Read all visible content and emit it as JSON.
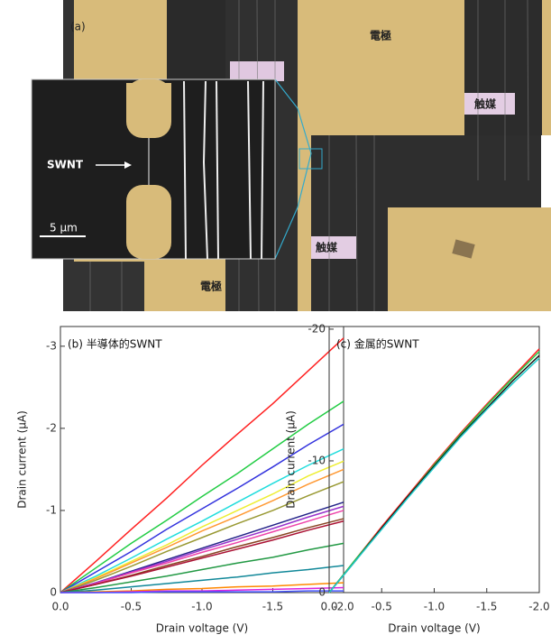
{
  "image": {
    "panel_label": "(a)",
    "electrode_top": "電極",
    "electrode_bottom": "電極",
    "catalyst_right": "触媒",
    "catalyst_bottom": "触媒",
    "inset": {
      "label": "SWNT",
      "scale_bar": "5 μm"
    }
  },
  "chart_data": [
    {
      "type": "line",
      "title": "(b) 半導体的SWNT",
      "x_label": "Drain voltage (V)",
      "y_label": "Drain current (μA)",
      "x": [
        0,
        -0.25,
        -0.5,
        -0.75,
        -1,
        -1.25,
        -1.5,
        -1.75,
        -2
      ],
      "xlim": [
        0,
        -2
      ],
      "xticks": [
        {
          "value": 0,
          "label": "0.0"
        },
        -0.5,
        {
          "value": -1,
          "label": "-1.0"
        },
        -1.5,
        {
          "value": -2,
          "label": "-2.0"
        }
      ],
      "ylim": [
        0,
        -3.24
      ],
      "yticks": [
        0,
        -1,
        -2,
        -3
      ],
      "series": [
        {
          "color": "#ff2020",
          "values": [
            0,
            -0.38,
            -0.77,
            -1.15,
            -1.55,
            -1.93,
            -2.3,
            -2.7,
            -3.1
          ]
        },
        {
          "color": "#22cc44",
          "values": [
            0,
            -0.3,
            -0.6,
            -0.88,
            -1.17,
            -1.45,
            -1.75,
            -2.05,
            -2.33
          ]
        },
        {
          "color": "#3333dd",
          "values": [
            0,
            -0.25,
            -0.5,
            -0.77,
            -1.02,
            -1.27,
            -1.53,
            -1.8,
            -2.05
          ]
        },
        {
          "color": "#22dddd",
          "values": [
            0,
            -0.2,
            -0.42,
            -0.65,
            -0.87,
            -1.1,
            -1.33,
            -1.55,
            -1.75
          ]
        },
        {
          "color": "#eeee33",
          "values": [
            0,
            -0.18,
            -0.38,
            -0.58,
            -0.8,
            -1.0,
            -1.2,
            -1.42,
            -1.6
          ]
        },
        {
          "color": "#ff9933",
          "values": [
            0,
            -0.17,
            -0.36,
            -0.55,
            -0.75,
            -0.93,
            -1.12,
            -1.32,
            -1.5
          ]
        },
        {
          "color": "#999933",
          "values": [
            0,
            -0.15,
            -0.32,
            -0.5,
            -0.67,
            -0.84,
            -1.0,
            -1.18,
            -1.35
          ]
        },
        {
          "color": "#222288",
          "values": [
            0,
            -0.12,
            -0.26,
            -0.4,
            -0.54,
            -0.68,
            -0.82,
            -0.96,
            -1.1
          ]
        },
        {
          "color": "#9933cc",
          "values": [
            0,
            -0.12,
            -0.25,
            -0.38,
            -0.52,
            -0.65,
            -0.78,
            -0.92,
            -1.05
          ]
        },
        {
          "color": "#ee44aa",
          "values": [
            0,
            -0.11,
            -0.24,
            -0.36,
            -0.49,
            -0.61,
            -0.74,
            -0.87,
            -1.0
          ]
        },
        {
          "color": "#884422",
          "values": [
            0,
            -0.1,
            -0.21,
            -0.33,
            -0.44,
            -0.56,
            -0.67,
            -0.79,
            -0.9
          ]
        },
        {
          "color": "#aa1133",
          "values": [
            0,
            -0.1,
            -0.2,
            -0.31,
            -0.42,
            -0.53,
            -0.64,
            -0.76,
            -0.87
          ]
        },
        {
          "color": "#229944",
          "values": [
            0,
            -0.06,
            -0.13,
            -0.2,
            -0.28,
            -0.36,
            -0.43,
            -0.52,
            -0.6
          ]
        },
        {
          "color": "#118899",
          "values": [
            0,
            -0.03,
            -0.07,
            -0.11,
            -0.15,
            -0.19,
            -0.24,
            -0.28,
            -0.33
          ]
        },
        {
          "color": "#ff8800",
          "values": [
            0,
            -0.01,
            -0.02,
            -0.04,
            -0.05,
            -0.07,
            -0.08,
            -0.1,
            -0.12
          ]
        },
        {
          "color": "#dd22dd",
          "values": [
            0,
            0,
            -0.01,
            -0.02,
            -0.02,
            -0.03,
            -0.04,
            -0.05,
            -0.06
          ]
        },
        {
          "color": "#4455ff",
          "values": [
            0,
            0,
            0,
            -0.01,
            -0.01,
            -0.01,
            -0.01,
            -0.02,
            -0.02
          ]
        }
      ]
    },
    {
      "type": "line",
      "title": "(c) 金属的SWNT",
      "x_label": "Drain voltage (V)",
      "y_label": "Drain current (μA)",
      "x": [
        0,
        -0.25,
        -0.5,
        -0.75,
        -1,
        -1.25,
        -1.5,
        -1.75,
        -2
      ],
      "xlim": [
        0,
        -2
      ],
      "xticks": [
        {
          "value": 0,
          "label": "0.0"
        },
        -0.5,
        {
          "value": -1,
          "label": "-1.0"
        },
        -1.5,
        {
          "value": -2,
          "label": "-2.0"
        }
      ],
      "ylim": [
        0,
        -20.2
      ],
      "yticks": [
        0,
        -10,
        -20
      ],
      "series": [
        {
          "color": "#ff2020",
          "values": [
            0,
            -2.5,
            -5,
            -7.4,
            -9.8,
            -12.1,
            -14.3,
            -16.4,
            -18.5
          ]
        },
        {
          "color": "#22cc44",
          "values": [
            0,
            -2.5,
            -4.9,
            -7.3,
            -9.7,
            -12.0,
            -14.2,
            -16.3,
            -18.3
          ]
        },
        {
          "color": "#111111",
          "values": [
            0,
            -2.4,
            -4.9,
            -7.3,
            -9.6,
            -11.9,
            -14.0,
            -16.1,
            -18.0
          ]
        },
        {
          "color": "#22cccc",
          "values": [
            0,
            -2.4,
            -4.8,
            -7.2,
            -9.5,
            -11.8,
            -13.9,
            -15.9,
            -17.8
          ]
        }
      ]
    }
  ]
}
